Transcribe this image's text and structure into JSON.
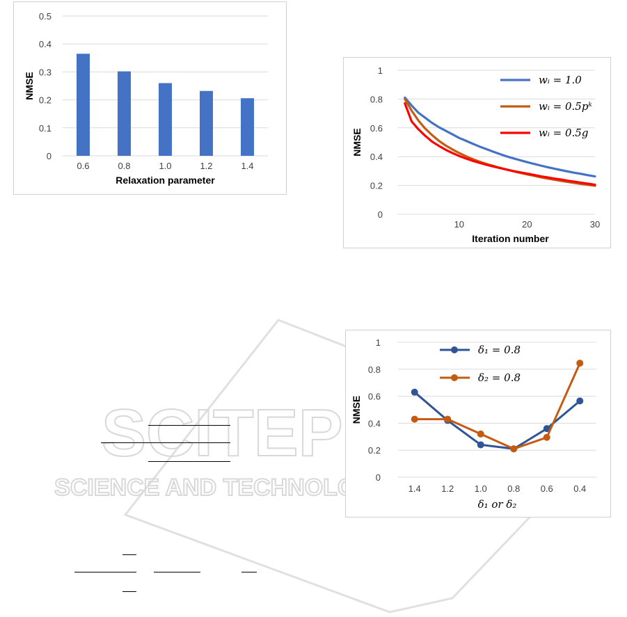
{
  "chart_data": [
    {
      "type": "bar",
      "categories": [
        "0.6",
        "0.8",
        "1.0",
        "1.2",
        "1.4"
      ],
      "values": [
        0.365,
        0.302,
        0.26,
        0.232,
        0.206
      ],
      "xlabel": "Relaxation parameter",
      "ylabel": "NMSE",
      "ylim": [
        0,
        0.5
      ],
      "yticks": [
        "0",
        "0.1",
        "0.2",
        "0.3",
        "0.4",
        "0.5"
      ],
      "grid": true,
      "colors": {
        "bar": "#4472C4",
        "grid": "#d9d9d9"
      }
    },
    {
      "type": "line",
      "x": [
        2,
        3,
        4,
        5,
        6,
        7,
        8,
        9,
        10,
        11,
        12,
        13,
        14,
        15,
        16,
        17,
        18,
        19,
        20,
        21,
        22,
        23,
        24,
        25,
        26,
        27,
        28,
        29,
        30
      ],
      "series": [
        {
          "name": "w_i = 1.0",
          "legend_label": "wᵢ = 1.0",
          "color": "#4472C4",
          "values": [
            0.81,
            0.755,
            0.705,
            0.67,
            0.635,
            0.605,
            0.58,
            0.555,
            0.53,
            0.51,
            0.49,
            0.47,
            0.452,
            0.435,
            0.418,
            0.402,
            0.388,
            0.375,
            0.362,
            0.35,
            0.338,
            0.327,
            0.317,
            0.307,
            0.297,
            0.288,
            0.28,
            0.271,
            0.263
          ]
        },
        {
          "name": "w_i = 0.5p^k",
          "legend_label": "wᵢ = 0.5pᵏ",
          "color": "#C55A11",
          "values": [
            0.8,
            0.72,
            0.65,
            0.595,
            0.55,
            0.51,
            0.478,
            0.45,
            0.425,
            0.403,
            0.383,
            0.365,
            0.35,
            0.336,
            0.322,
            0.31,
            0.298,
            0.287,
            0.277,
            0.267,
            0.257,
            0.248,
            0.24,
            0.232,
            0.224,
            0.217,
            0.21,
            0.204,
            0.198
          ]
        },
        {
          "name": "w_i = 0.5g",
          "legend_label": "wᵢ = 0.5g",
          "color": "#FF0000",
          "values": [
            0.77,
            0.645,
            0.59,
            0.545,
            0.505,
            0.475,
            0.448,
            0.425,
            0.405,
            0.387,
            0.371,
            0.357,
            0.344,
            0.332,
            0.321,
            0.31,
            0.3,
            0.291,
            0.282,
            0.273,
            0.264,
            0.256,
            0.248,
            0.241,
            0.233,
            0.226,
            0.219,
            0.212,
            0.205
          ]
        }
      ],
      "xlabel": "Iteration number",
      "ylabel": "NMSE",
      "xlim": [
        1,
        30
      ],
      "ylim": [
        0,
        1
      ],
      "xticks": [
        "10",
        "20",
        "30"
      ],
      "yticks": [
        "0",
        "0.2",
        "0.4",
        "0.6",
        "0.8",
        "1"
      ],
      "grid": true,
      "legend_position": "top-right"
    },
    {
      "type": "line",
      "categories": [
        "1.4",
        "1.2",
        "1.0",
        "0.8",
        "0.6",
        "0.4"
      ],
      "series": [
        {
          "name": "δ1 = 0.8",
          "legend_label": "δ₁ = 0.8",
          "color": "#2F5597",
          "values": [
            0.63,
            0.42,
            0.24,
            0.21,
            0.36,
            0.565
          ]
        },
        {
          "name": "δ2 = 0.8",
          "legend_label": "δ₂ = 0.8",
          "color": "#C55A11",
          "values": [
            0.43,
            0.43,
            0.32,
            0.21,
            0.295,
            0.845
          ]
        }
      ],
      "xlabel": "δ₁ or δ₂",
      "ylabel": "NMSE",
      "ylim": [
        0,
        1
      ],
      "yticks": [
        "0",
        "0.2",
        "0.4",
        "0.6",
        "0.8",
        "1"
      ],
      "grid": true,
      "markers": "circle",
      "legend_position": "top-left"
    }
  ],
  "watermark": {
    "line1": "SCITEPRESS",
    "line2": "SCIENCE AND TECHNOLOGY PUBLICATIONS"
  }
}
